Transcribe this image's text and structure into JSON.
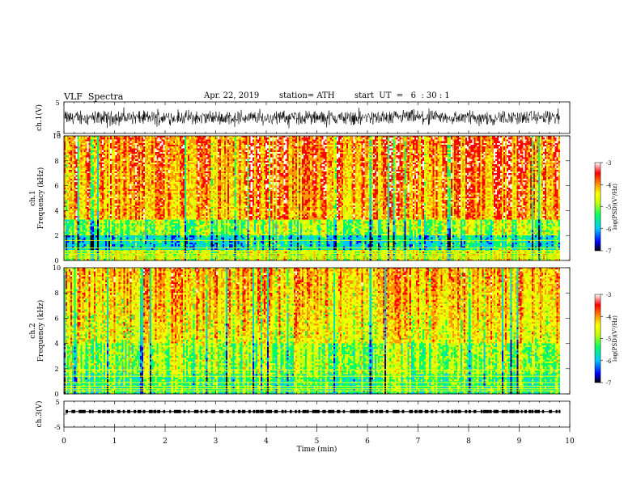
{
  "header": {
    "title": "VLF  Spectra",
    "date": "Apr. 22, 2019",
    "station": "station= ATH",
    "start": "start  UT  =   6  : 30 : 1"
  },
  "chart_data": [
    {
      "type": "line",
      "panel": "ch1-waveform",
      "ylabel": "ch.1(V)",
      "ylim": [
        -5,
        5
      ],
      "yticks": [
        "5",
        "-5"
      ],
      "xlim": [
        0,
        10
      ],
      "data_extent_min": 9.8,
      "description_of_values": "noisy voltage trace, roughly between -3.5 and 3.5 V"
    },
    {
      "type": "heatmap",
      "panel": "ch1-spectrogram",
      "ylabel": "ch.1\nFrequency  (kHz)",
      "ylim": [
        0,
        10
      ],
      "yticks": [
        "0",
        "2",
        "4",
        "6",
        "8",
        "10"
      ],
      "xlim": [
        0,
        10
      ],
      "data_extent_min": 9.8,
      "colorbar": {
        "label": "log(PSD)(V²/Hz)",
        "range": [
          -7,
          -3
        ],
        "ticks": [
          "-3",
          "-4",
          "-5",
          "-6",
          "-7"
        ]
      }
    },
    {
      "type": "heatmap",
      "panel": "ch2-spectrogram",
      "ylabel": "ch.2\nFrequency  (kHz)",
      "ylim": [
        0,
        10
      ],
      "yticks": [
        "0",
        "2",
        "4",
        "6",
        "8",
        "10"
      ],
      "xlim": [
        0,
        10
      ],
      "data_extent_min": 9.8,
      "colorbar": {
        "label": "log(PSD)(V²/Hz)",
        "range": [
          -7,
          -3
        ],
        "ticks": [
          "-3",
          "-4",
          "-5",
          "-6",
          "-7"
        ]
      }
    },
    {
      "type": "line",
      "panel": "ch3-waveform",
      "ylabel": "ch.3(V)",
      "ylim": [
        -5,
        5
      ],
      "yticks": [
        "5",
        "-5"
      ],
      "xlim": [
        0,
        10
      ],
      "data_extent_min": 9.8,
      "description_of_values": "near-constant level around 1 V with small dashes"
    }
  ],
  "x_axis": {
    "label": "Time  (min)",
    "ticks": [
      "0",
      "1",
      "2",
      "3",
      "4",
      "5",
      "6",
      "7",
      "8",
      "9",
      "10"
    ]
  },
  "colors": {
    "colormap": [
      "#000000",
      "#0000ff",
      "#00c8ff",
      "#00ff66",
      "#ccff00",
      "#ffff00",
      "#ff9900",
      "#ff0000",
      "#ffffff"
    ],
    "trace": "#000000"
  }
}
